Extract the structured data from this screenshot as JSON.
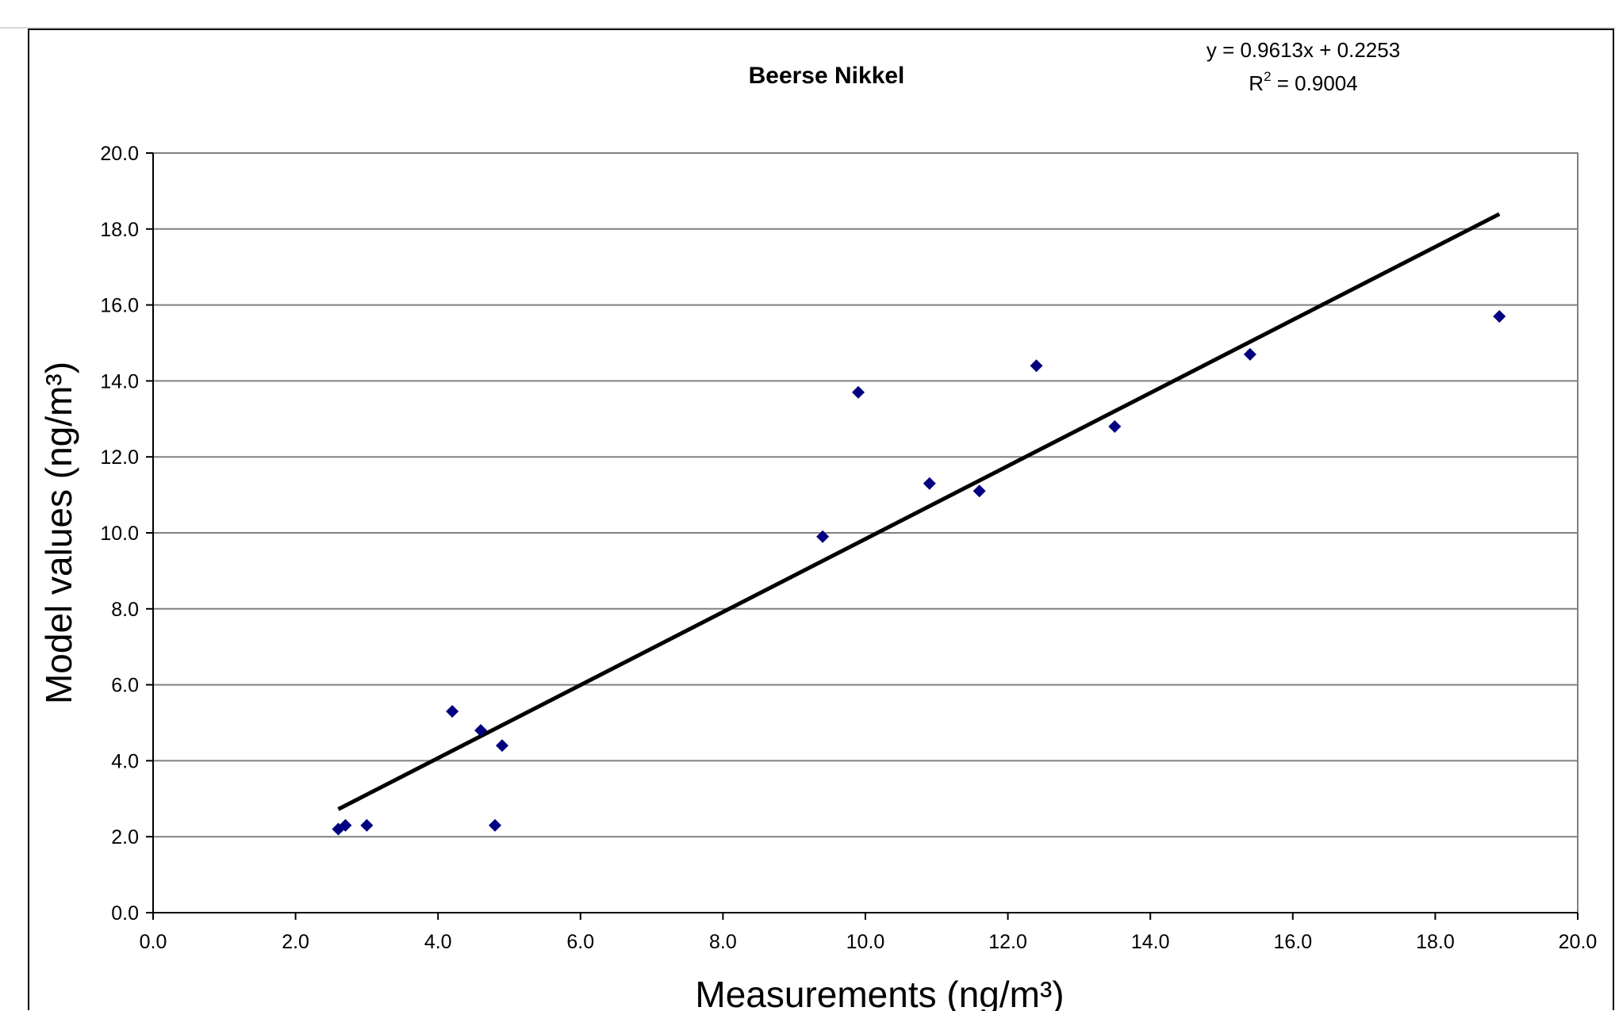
{
  "chart_data": {
    "type": "scatter",
    "title": "Beerse Nikkel",
    "xlabel": "Measurements (ng/m³)",
    "ylabel": "Model values (ng/m³)",
    "xlim": [
      0,
      20
    ],
    "ylim": [
      0,
      20
    ],
    "x_ticks": [
      "0.0",
      "2.0",
      "4.0",
      "6.0",
      "8.0",
      "10.0",
      "12.0",
      "14.0",
      "16.0",
      "18.0",
      "20.0"
    ],
    "y_ticks": [
      "0.0",
      "2.0",
      "4.0",
      "6.0",
      "8.0",
      "10.0",
      "12.0",
      "14.0",
      "16.0",
      "18.0",
      "20.0"
    ],
    "grid": "horizontal",
    "legend": "none",
    "series": [
      {
        "color": "#000080",
        "marker": "diamond",
        "points": [
          {
            "x": 2.6,
            "y": 2.2
          },
          {
            "x": 2.7,
            "y": 2.3
          },
          {
            "x": 3.0,
            "y": 2.3
          },
          {
            "x": 4.2,
            "y": 5.3
          },
          {
            "x": 4.6,
            "y": 4.8
          },
          {
            "x": 4.8,
            "y": 2.3
          },
          {
            "x": 4.9,
            "y": 4.4
          },
          {
            "x": 9.4,
            "y": 9.9
          },
          {
            "x": 9.9,
            "y": 13.7
          },
          {
            "x": 10.9,
            "y": 11.3
          },
          {
            "x": 11.6,
            "y": 11.1
          },
          {
            "x": 12.4,
            "y": 14.4
          },
          {
            "x": 13.5,
            "y": 12.8
          },
          {
            "x": 15.4,
            "y": 14.7
          },
          {
            "x": 18.9,
            "y": 15.7
          }
        ]
      }
    ],
    "trendline": {
      "type": "linear",
      "slope": 0.9613,
      "intercept": 0.2253,
      "x_range": [
        2.6,
        18.9
      ],
      "color": "#000000",
      "equation_label": "y = 0.9613x + 0.2253",
      "r2_prefix": "R",
      "r2_sup": "2",
      "r2_value": " = 0.9004"
    }
  }
}
